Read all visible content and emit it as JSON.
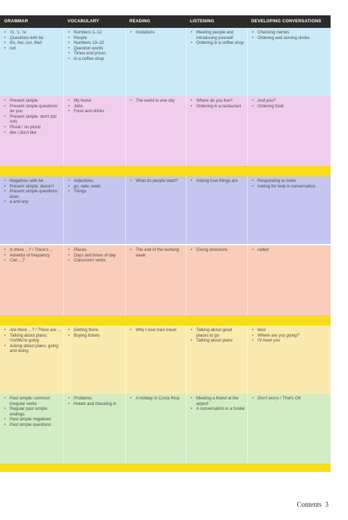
{
  "headers": [
    "GRAMMAR",
    "VOCABULARY",
    "READING",
    "LISTENING",
    "DEVELOPING CONVERSATIONS"
  ],
  "rows": [
    {
      "color": "#c9eaf6",
      "cells": [
        [
          {
            "t": "'m, 's, 're",
            "i": true
          },
          {
            "t": "Questions with be",
            "i": true
          },
          {
            "t": "his, her, our, their",
            "i": true
          },
          {
            "t": "not",
            "i": true
          }
        ],
        [
          {
            "t": "Numbers 1–12",
            "i": false
          },
          {
            "t": "People",
            "i": false
          },
          {
            "t": "Numbers 13–22",
            "i": false
          },
          {
            "t": "Question words",
            "i": false
          },
          {
            "t": "Times and prices",
            "i": false
          },
          {
            "t": "In a coffee shop",
            "i": false
          }
        ],
        [
          {
            "t": "Invitations",
            "i": false
          }
        ],
        [
          {
            "t": "Meeting people and introducing yourself",
            "i": false
          },
          {
            "t": "Ordering in a coffee shop",
            "i": false
          }
        ],
        [
          {
            "t": "Checking names",
            "i": false
          },
          {
            "t": "Ordering and serving drinks",
            "i": false
          }
        ]
      ]
    },
    {
      "color": "#f1cdec",
      "cells": [
        [
          {
            "t": "Present simple",
            "i": false
          },
          {
            "t": "Present simple questions: do you",
            "i": false
          },
          {
            "t": "Present simple: don't (do not)",
            "i": false
          },
          {
            "t": "Plural / no plural",
            "i": false
          },
          {
            "t": "like / don't like",
            "i": true
          }
        ],
        [
          {
            "t": "My home",
            "i": false
          },
          {
            "t": "Jobs",
            "i": false
          },
          {
            "t": "Food and drinks",
            "i": false
          }
        ],
        [
          {
            "t": "The world in one city",
            "i": false
          }
        ],
        [
          {
            "t": "Where do you live?",
            "i": false
          },
          {
            "t": "Ordering in a restaurant",
            "i": false
          }
        ],
        [
          {
            "t": "And you?",
            "i": true
          },
          {
            "t": "Ordering food",
            "i": false
          }
        ]
      ]
    },
    {
      "color": "#c5c6ef",
      "cells": [
        [
          {
            "t": "Negatives with be",
            "i": false
          },
          {
            "t": "Present simple: doesn't",
            "i": false
          },
          {
            "t": "Present simple questions: does",
            "i": false
          },
          {
            "t": "a and any",
            "i": true
          }
        ],
        [
          {
            "t": "Adjectives",
            "i": false
          },
          {
            "t": "go, take, want",
            "i": true
          },
          {
            "t": "Things",
            "i": false
          }
        ],
        [
          {
            "t": "What do people want?",
            "i": false
          }
        ],
        [
          {
            "t": "Asking how things are",
            "i": false
          }
        ],
        [
          {
            "t": "Responding to news",
            "i": false
          },
          {
            "t": "Asking for help in conversation",
            "i": false
          }
        ]
      ]
    },
    {
      "color": "#f8cdb9",
      "cells": [
        [
          {
            "t": "Is there ...? / There's ...",
            "i": true
          },
          {
            "t": "Adverbs of frequency",
            "i": false
          },
          {
            "t": "Can ...?",
            "i": true
          }
        ],
        [
          {
            "t": "Places",
            "i": false
          },
          {
            "t": "Days and times of day",
            "i": false
          },
          {
            "t": "Classroom verbs",
            "i": false
          }
        ],
        [
          {
            "t": "The end of the working week",
            "i": false
          }
        ],
        [
          {
            "t": "Giving directions",
            "i": false
          }
        ],
        [
          {
            "t": "called",
            "i": true
          }
        ]
      ]
    },
    {
      "color": "#faeaae",
      "cells": [
        [
          {
            "t": "Are there ...? / There are ...",
            "i": true
          },
          {
            "t": "Talking about plans: I'm/We're going",
            "i": false
          },
          {
            "t": "Asking about plans: going and doing",
            "i": false
          }
        ],
        [
          {
            "t": "Getting there",
            "i": false
          },
          {
            "t": "Buying tickets",
            "i": false
          }
        ],
        [
          {
            "t": "Why I love train travel",
            "i": false
          }
        ],
        [
          {
            "t": "Talking about good places to go",
            "i": false
          },
          {
            "t": "Talking about plans",
            "i": false
          }
        ],
        [
          {
            "t": "best",
            "i": true
          },
          {
            "t": "Where are you going?",
            "i": true
          },
          {
            "t": "I'll meet you",
            "i": true
          }
        ]
      ]
    },
    {
      "color": "#d3ecc4",
      "cells": [
        [
          {
            "t": "Past simple: common irregular verbs",
            "i": false
          },
          {
            "t": "Regular past simple endings",
            "i": false
          },
          {
            "t": "Past simple negatives",
            "i": false
          },
          {
            "t": "Past simple questions",
            "i": false
          }
        ],
        [
          {
            "t": "Problems",
            "i": false
          },
          {
            "t": "Hotels and checking in",
            "i": false
          }
        ],
        [
          {
            "t": "A holiday in Costa Rica",
            "i": false
          }
        ],
        [
          {
            "t": "Meeting a friend at the airport",
            "i": false
          },
          {
            "t": "A conversation in a hostel",
            "i": false
          }
        ],
        [
          {
            "t": "Don't worry / That's OK",
            "i": true
          }
        ]
      ]
    }
  ],
  "band_color": "#f6dc1a",
  "footer": {
    "title": "Contents",
    "page": "3"
  }
}
